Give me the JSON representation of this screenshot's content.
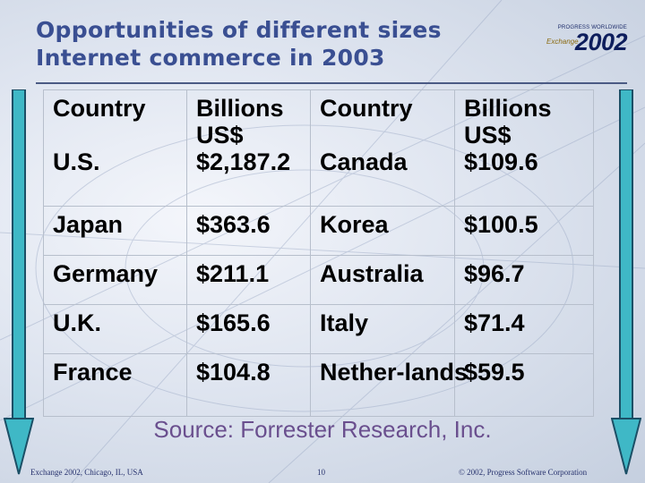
{
  "slide": {
    "title_line1": "Opportunities of different sizes",
    "title_line2": "Internet commerce in 2003",
    "logo_tagline": "PROGRESS WORLDWIDE",
    "logo_name": "Exchange",
    "logo_year": "2002",
    "source": "Source: Forrester Research, Inc.",
    "footer_left": "Exchange 2002, Chicago, IL, USA",
    "footer_page": "10",
    "footer_right": "© 2002, Progress Software Corporation",
    "colors": {
      "title": "#3a4f92",
      "source": "#6a4f8e",
      "arrow": "#3fb8c6"
    }
  },
  "table": {
    "headers": [
      "Country",
      "Billions US$",
      "Country",
      "Billions US$"
    ],
    "rows": [
      [
        "U.S.",
        "$2,187.2",
        "Canada",
        "$109.6"
      ],
      [
        "Japan",
        "$363.6",
        "Korea",
        "$100.5"
      ],
      [
        "Germany",
        "$211.1",
        "Australia",
        "$96.7"
      ],
      [
        "U.K.",
        "$165.6",
        "Italy",
        "$71.4"
      ],
      [
        "France",
        "$104.8",
        "Nether-lands",
        "$59.5"
      ]
    ]
  }
}
